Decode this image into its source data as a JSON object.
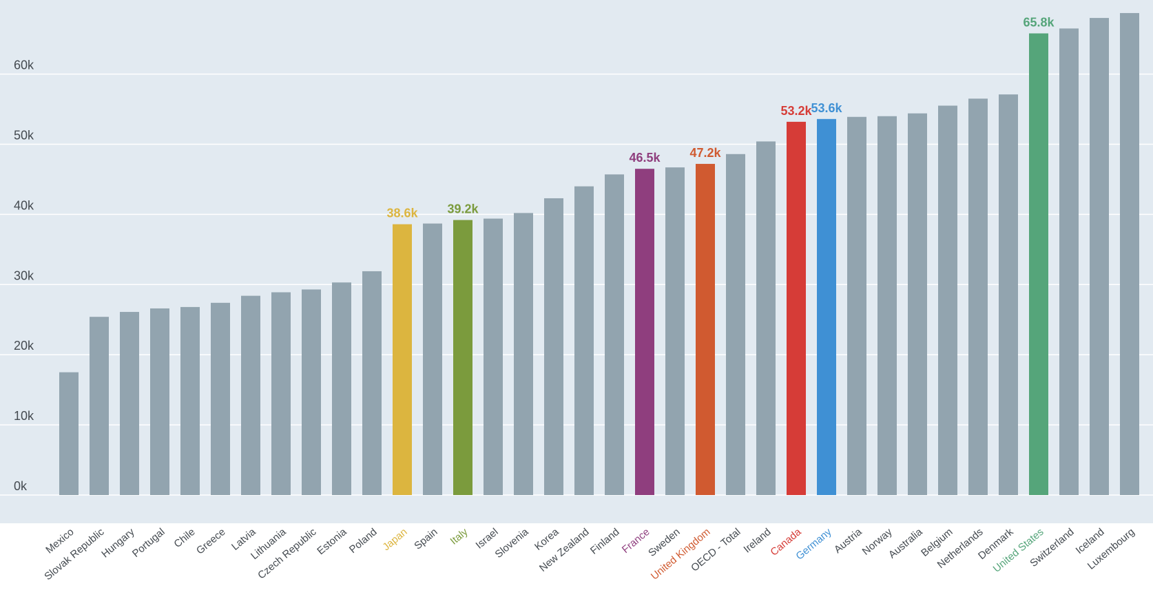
{
  "chart_data": {
    "type": "bar",
    "categories": [
      "Mexico",
      "Slovak Republic",
      "Hungary",
      "Portugal",
      "Chile",
      "Greece",
      "Latvia",
      "Lithuania",
      "Czech Republic",
      "Estonia",
      "Poland",
      "Japan",
      "Spain",
      "Italy",
      "Israel",
      "Slovenia",
      "Korea",
      "New Zealand",
      "Finland",
      "France",
      "Sweden",
      "United Kingdom",
      "OECD - Total",
      "Ireland",
      "Canada",
      "Germany",
      "Austria",
      "Norway",
      "Australia",
      "Belgium",
      "Netherlands",
      "Denmark",
      "United States",
      "Switzerland",
      "Iceland",
      "Luxembourg"
    ],
    "values": [
      17.5,
      25.4,
      26.1,
      26.6,
      26.8,
      27.4,
      28.4,
      28.9,
      29.3,
      30.3,
      31.9,
      38.6,
      38.7,
      39.2,
      39.4,
      40.2,
      42.3,
      44.0,
      45.7,
      46.5,
      46.7,
      47.2,
      48.6,
      50.4,
      53.2,
      53.6,
      53.9,
      54.0,
      54.4,
      55.5,
      56.5,
      57.1,
      65.8,
      66.5,
      68.0,
      68.7
    ],
    "highlights": {
      "Japan": {
        "color": "#dcb53f",
        "label": "38.6k"
      },
      "Italy": {
        "color": "#7b9b3d",
        "label": "39.2k"
      },
      "France": {
        "color": "#8f3e7e",
        "label": "46.5k"
      },
      "United Kingdom": {
        "color": "#d05a30",
        "label": "47.2k"
      },
      "Canada": {
        "color": "#d63c37",
        "label": "53.2k"
      },
      "Germany": {
        "color": "#3f90d4",
        "label": "53.6k"
      },
      "United States": {
        "color": "#55a57a",
        "label": "65.8k"
      }
    },
    "default_bar_color": "#92a4af",
    "default_label_color": "#444a50",
    "y_ticks": [
      {
        "value": 0,
        "label": "0k"
      },
      {
        "value": 10,
        "label": "10k"
      },
      {
        "value": 20,
        "label": "20k"
      },
      {
        "value": 30,
        "label": "30k"
      },
      {
        "value": 40,
        "label": "40k"
      },
      {
        "value": 50,
        "label": "50k"
      },
      {
        "value": 60,
        "label": "60k"
      }
    ],
    "ylim": [
      0,
      70
    ],
    "grid": true,
    "background_color": "#e2eaf1",
    "title": "",
    "xlabel": "",
    "ylabel": ""
  }
}
